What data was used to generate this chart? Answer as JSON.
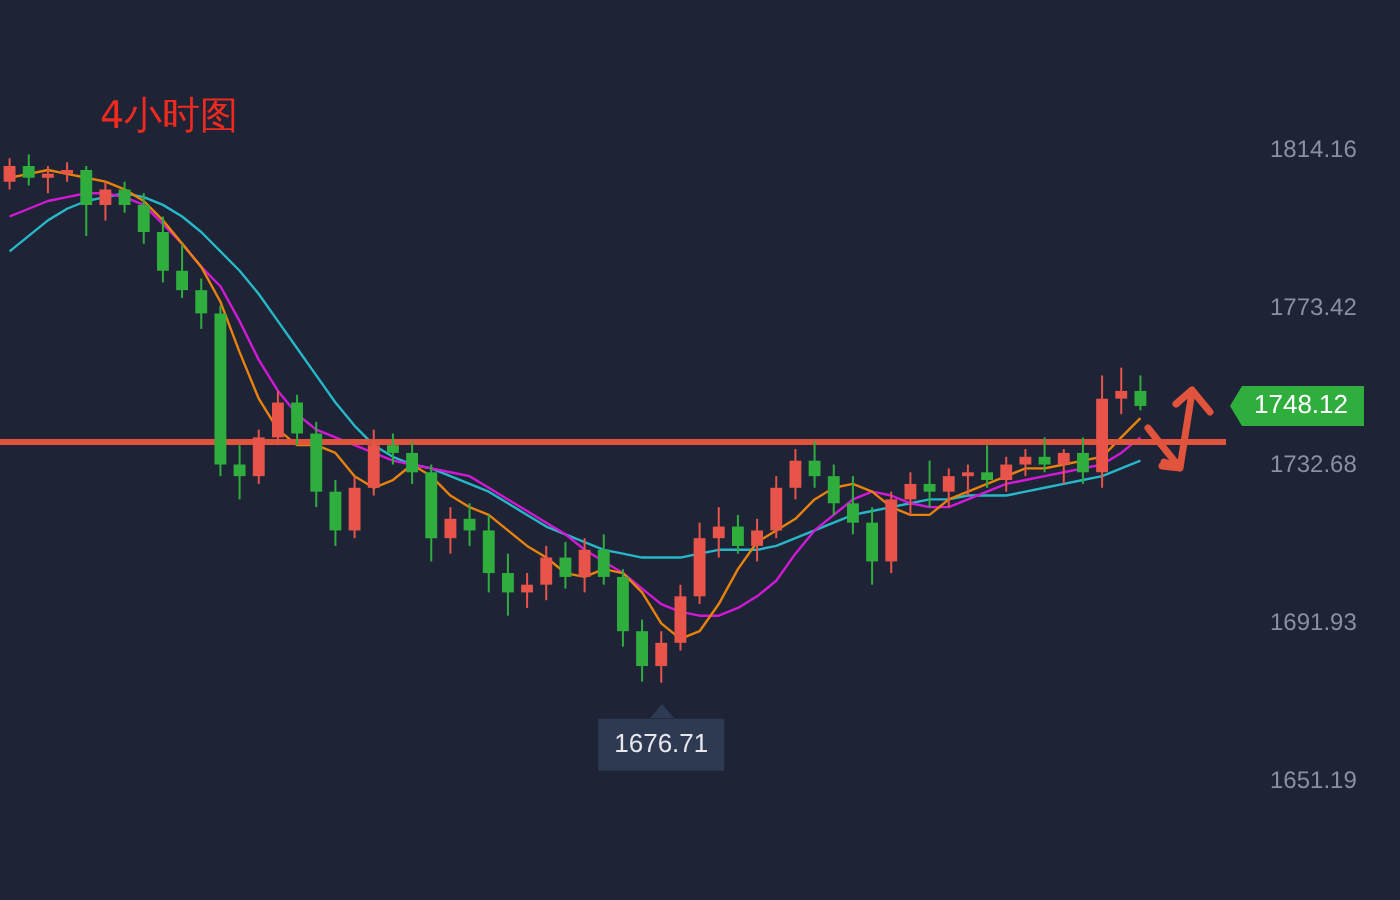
{
  "chart_data": {
    "type": "candlestick",
    "title": "4小时图",
    "categories": [
      null,
      null,
      null,
      null,
      null,
      null,
      null,
      null,
      null,
      null,
      null,
      null,
      null,
      null,
      null,
      null,
      null,
      null,
      null,
      null,
      null,
      null,
      null,
      null,
      null,
      null,
      null,
      null,
      null,
      null,
      null,
      null,
      null,
      null,
      null,
      null,
      null,
      null,
      null,
      null,
      null,
      null,
      null,
      null,
      null,
      null,
      null,
      null,
      null,
      null,
      null,
      null,
      null,
      null,
      null,
      null,
      null,
      null,
      null,
      null
    ],
    "ohlc": [
      [
        1806,
        1812,
        1804,
        1810
      ],
      [
        1810,
        1813,
        1805,
        1807
      ],
      [
        1807,
        1810,
        1803,
        1808
      ],
      [
        1808,
        1811,
        1806,
        1809
      ],
      [
        1809,
        1810,
        1792,
        1800
      ],
      [
        1800,
        1806,
        1796,
        1804
      ],
      [
        1804,
        1806,
        1798,
        1800
      ],
      [
        1800,
        1803,
        1790,
        1793
      ],
      [
        1793,
        1797,
        1780,
        1783
      ],
      [
        1783,
        1790,
        1776,
        1778
      ],
      [
        1778,
        1781,
        1768,
        1772
      ],
      [
        1772,
        1774,
        1730,
        1733
      ],
      [
        1733,
        1738,
        1724,
        1730
      ],
      [
        1730,
        1742,
        1728,
        1740
      ],
      [
        1740,
        1752,
        1738,
        1749
      ],
      [
        1749,
        1751,
        1738,
        1741
      ],
      [
        1741,
        1744,
        1722,
        1726
      ],
      [
        1726,
        1729,
        1712,
        1716
      ],
      [
        1716,
        1730,
        1714,
        1727
      ],
      [
        1727,
        1742,
        1725,
        1738
      ],
      [
        1738,
        1741,
        1733,
        1736
      ],
      [
        1736,
        1739,
        1728,
        1731
      ],
      [
        1731,
        1733,
        1708,
        1714
      ],
      [
        1714,
        1722,
        1710,
        1719
      ],
      [
        1719,
        1723,
        1712,
        1716
      ],
      [
        1716,
        1720,
        1700,
        1705
      ],
      [
        1705,
        1710,
        1694,
        1700
      ],
      [
        1700,
        1705,
        1696,
        1702
      ],
      [
        1702,
        1712,
        1698,
        1709
      ],
      [
        1709,
        1713,
        1701,
        1704
      ],
      [
        1704,
        1714,
        1700,
        1711
      ],
      [
        1711,
        1715,
        1702,
        1704
      ],
      [
        1704,
        1706,
        1686,
        1690
      ],
      [
        1690,
        1693,
        1677,
        1681
      ],
      [
        1681,
        1690,
        1676.71,
        1687
      ],
      [
        1687,
        1702,
        1685,
        1699
      ],
      [
        1699,
        1718,
        1697,
        1714
      ],
      [
        1714,
        1722,
        1709,
        1717
      ],
      [
        1717,
        1720,
        1710,
        1712
      ],
      [
        1712,
        1719,
        1708,
        1716
      ],
      [
        1716,
        1730,
        1714,
        1727
      ],
      [
        1727,
        1737,
        1724,
        1734
      ],
      [
        1734,
        1739,
        1727,
        1730
      ],
      [
        1730,
        1733,
        1720,
        1723
      ],
      [
        1723,
        1730,
        1715,
        1718
      ],
      [
        1718,
        1722,
        1702,
        1708
      ],
      [
        1708,
        1726,
        1705,
        1724
      ],
      [
        1724,
        1731,
        1720,
        1728
      ],
      [
        1728,
        1734,
        1722,
        1726
      ],
      [
        1726,
        1732,
        1722,
        1730
      ],
      [
        1730,
        1733,
        1725,
        1731
      ],
      [
        1731,
        1738,
        1727,
        1729
      ],
      [
        1729,
        1735,
        1726,
        1733
      ],
      [
        1733,
        1737,
        1730,
        1735
      ],
      [
        1735,
        1740,
        1731,
        1733
      ],
      [
        1733,
        1737,
        1728,
        1736
      ],
      [
        1736,
        1740,
        1728,
        1731
      ],
      [
        1731,
        1756,
        1727,
        1750
      ],
      [
        1750,
        1758,
        1746,
        1752
      ],
      [
        1752,
        1756,
        1747,
        1748.12
      ]
    ],
    "colors": [
      "#e8534a",
      "#2fae3e",
      "#e8534a",
      "#e8534a",
      "#2fae3e",
      "#e8534a",
      "#2fae3e",
      "#2fae3e",
      "#2fae3e",
      "#2fae3e",
      "#2fae3e",
      "#2fae3e",
      "#2fae3e",
      "#e8534a",
      "#e8534a",
      "#2fae3e",
      "#2fae3e",
      "#2fae3e",
      "#e8534a",
      "#e8534a",
      "#2fae3e",
      "#2fae3e",
      "#2fae3e",
      "#e8534a",
      "#2fae3e",
      "#2fae3e",
      "#2fae3e",
      "#e8534a",
      "#e8534a",
      "#2fae3e",
      "#e8534a",
      "#2fae3e",
      "#2fae3e",
      "#2fae3e",
      "#e8534a",
      "#e8534a",
      "#e8534a",
      "#e8534a",
      "#2fae3e",
      "#e8534a",
      "#e8534a",
      "#e8534a",
      "#2fae3e",
      "#2fae3e",
      "#2fae3e",
      "#2fae3e",
      "#e8534a",
      "#e8534a",
      "#2fae3e",
      "#e8534a",
      "#e8534a",
      "#2fae3e",
      "#e8534a",
      "#e8534a",
      "#2fae3e",
      "#e8534a",
      "#2fae3e",
      "#e8534a",
      "#e8534a",
      "#2fae3e"
    ],
    "series": [
      {
        "type": "line",
        "color": "#e8820c",
        "values": [
          1807,
          1808,
          1809,
          1808,
          1807,
          1806,
          1804,
          1801,
          1796,
          1790,
          1784,
          1775,
          1762,
          1750,
          1742,
          1738,
          1738,
          1736,
          1730,
          1727,
          1729,
          1733,
          1730,
          1725,
          1722,
          1720,
          1716,
          1712,
          1709,
          1705,
          1704,
          1706,
          1705,
          1700,
          1692,
          1688,
          1690,
          1697,
          1706,
          1713,
          1716,
          1719,
          1724,
          1727,
          1728,
          1726,
          1722,
          1720,
          1720,
          1724,
          1726,
          1728,
          1730,
          1732,
          1732,
          1733,
          1734,
          1735,
          1740,
          1745
        ]
      },
      {
        "type": "line",
        "color": "#d21ad6",
        "values": [
          1797,
          1799,
          1801,
          1802,
          1803,
          1803,
          1802,
          1800,
          1795,
          1790,
          1784,
          1779,
          1770,
          1760,
          1752,
          1746,
          1742,
          1740,
          1738,
          1736,
          1734,
          1733,
          1732,
          1731,
          1730,
          1727,
          1724,
          1721,
          1718,
          1715,
          1711,
          1708,
          1705,
          1701,
          1697,
          1695,
          1694,
          1694,
          1696,
          1699,
          1703,
          1710,
          1716,
          1720,
          1724,
          1726,
          1725,
          1723,
          1722,
          1722,
          1724,
          1726,
          1728,
          1729,
          1730,
          1731,
          1732,
          1733,
          1736,
          1740
        ]
      },
      {
        "type": "line",
        "color": "#27b8c8",
        "values": [
          1788,
          1792,
          1796,
          1799,
          1801,
          1802,
          1803,
          1802,
          1800,
          1797,
          1793,
          1788,
          1783,
          1777,
          1770,
          1763,
          1756,
          1749,
          1743,
          1738,
          1735,
          1733,
          1732,
          1730,
          1728,
          1726,
          1723,
          1720,
          1717,
          1715,
          1713,
          1711,
          1710,
          1709,
          1709,
          1709,
          1710,
          1711,
          1711,
          1711,
          1712,
          1714,
          1716,
          1718,
          1720,
          1721,
          1722,
          1723,
          1724,
          1724,
          1725,
          1725,
          1725,
          1726,
          1727,
          1728,
          1729,
          1730,
          1732,
          1734
        ]
      }
    ],
    "ylim": [
      1651.19,
      1814.16
    ],
    "yticks": [
      1651.19,
      1691.93,
      1732.68,
      1773.42,
      1814.16
    ],
    "tick_labels": "y",
    "grid": false,
    "legend": false,
    "ref_lines": [
      {
        "axis": "y",
        "value": 1738.8,
        "color": "#e0533d"
      }
    ],
    "annotations": [
      {
        "text": "1676.71",
        "y": 1676.71
      },
      "1748.12"
    ]
  }
}
